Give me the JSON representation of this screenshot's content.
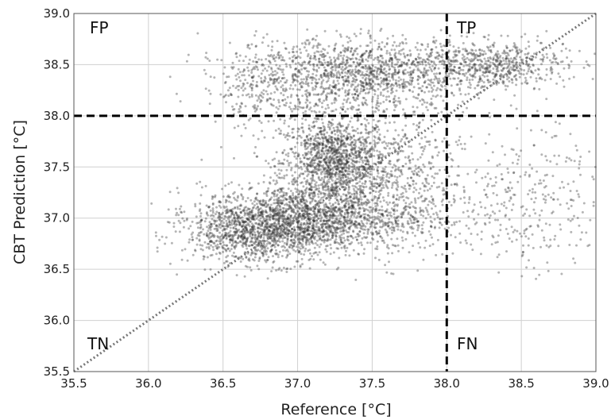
{
  "chart_data": {
    "type": "scatter",
    "xlabel": "Reference [°C]",
    "ylabel": "CBT Prediction [°C]",
    "xlim": [
      35.5,
      39.0
    ],
    "ylim": [
      35.5,
      39.0
    ],
    "x_ticks": [
      "35.5",
      "36.0",
      "36.5",
      "37.0",
      "37.5",
      "38.0",
      "38.5",
      "39.0"
    ],
    "y_ticks": [
      "35.5",
      "36.0",
      "36.5",
      "37.0",
      "37.5",
      "38.0",
      "38.5",
      "39.0"
    ],
    "grid": true,
    "threshold": {
      "x": 38.0,
      "y": 38.0
    },
    "identity_line": true,
    "quadrant_labels": {
      "fp": "FP",
      "tp": "TP",
      "tn": "TN",
      "fn": "FN"
    },
    "point_color": "#2b2b2b",
    "clusters": [
      {
        "cx": 37.25,
        "cy": 37.55,
        "sx": 0.18,
        "sy": 0.22,
        "n": 1400
      },
      {
        "cx": 37.05,
        "cy": 37.0,
        "sx": 0.35,
        "sy": 0.16,
        "n": 1600
      },
      {
        "cx": 36.75,
        "cy": 36.85,
        "sx": 0.25,
        "sy": 0.15,
        "n": 900
      },
      {
        "cx": 37.45,
        "cy": 38.4,
        "sx": 0.35,
        "sy": 0.18,
        "n": 1300
      },
      {
        "cx": 38.3,
        "cy": 38.5,
        "sx": 0.25,
        "sy": 0.12,
        "n": 600
      },
      {
        "cx": 36.75,
        "cy": 38.3,
        "sx": 0.2,
        "sy": 0.22,
        "n": 300
      },
      {
        "cx": 38.5,
        "cy": 37.2,
        "sx": 0.28,
        "sy": 0.35,
        "n": 350
      },
      {
        "cx": 37.7,
        "cy": 37.3,
        "sx": 0.2,
        "sy": 0.35,
        "n": 500
      }
    ]
  }
}
